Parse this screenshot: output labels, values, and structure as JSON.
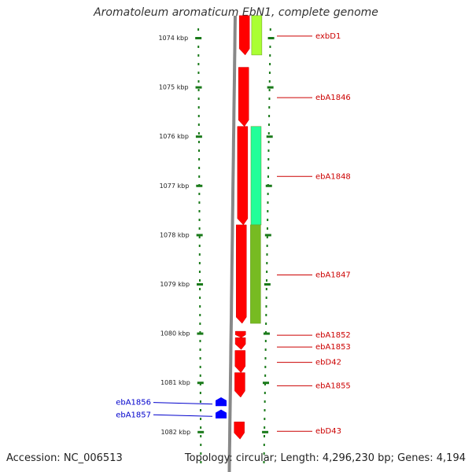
{
  "title": "Aromatoleum aromaticum EbN1, complete genome",
  "footer": {
    "accession": "Accession: NC_006513",
    "summary": "Topology: circular; Length: 4,296,230 bp; Genes: 4,194"
  },
  "colors": {
    "forward_gene": "#ff0000",
    "reverse_gene": "#0000ff",
    "forward_label": "#cc0000",
    "reverse_label": "#0000cc",
    "tick": "#1a7a1a",
    "backbone": "#888888"
  },
  "ruler": {
    "unit": "kbp",
    "ticks": [
      {
        "value": 1074,
        "label": "1074 kbp"
      },
      {
        "value": 1075,
        "label": "1075 kbp"
      },
      {
        "value": 1076,
        "label": "1076 kbp"
      },
      {
        "value": 1077,
        "label": "1077 kbp"
      },
      {
        "value": 1078,
        "label": "1078 kbp"
      },
      {
        "value": 1079,
        "label": "1079 kbp"
      },
      {
        "value": 1080,
        "label": "1080 kbp"
      },
      {
        "value": 1081,
        "label": "1081 kbp"
      },
      {
        "value": 1082,
        "label": "1082 kbp"
      }
    ]
  },
  "genes": [
    {
      "name": "exbD1",
      "strand": "forward",
      "start": 1073.55,
      "end": 1074.35
    },
    {
      "name": "ebA1846",
      "strand": "forward",
      "start": 1074.6,
      "end": 1075.8
    },
    {
      "name": "ebA1848",
      "strand": "forward",
      "start": 1075.8,
      "end": 1077.8
    },
    {
      "name": "ebA1847",
      "strand": "forward",
      "start": 1077.8,
      "end": 1079.8
    },
    {
      "name": "ebA1852",
      "strand": "forward",
      "start": 1079.96,
      "end": 1080.09
    },
    {
      "name": "ebA1853",
      "strand": "forward",
      "start": 1080.09,
      "end": 1080.33
    },
    {
      "name": "ebD42",
      "strand": "forward",
      "start": 1080.35,
      "end": 1080.8
    },
    {
      "name": "ebA1855",
      "strand": "forward",
      "start": 1080.8,
      "end": 1081.3
    },
    {
      "name": "ebA1856",
      "strand": "reverse",
      "start": 1081.3,
      "end": 1081.48
    },
    {
      "name": "ebA1857",
      "strand": "reverse",
      "start": 1081.55,
      "end": 1081.73
    },
    {
      "name": "ebD43",
      "strand": "forward",
      "start": 1081.8,
      "end": 1082.15
    }
  ],
  "features": [
    {
      "color": "#aaff33",
      "start": 1073.55,
      "end": 1074.35
    },
    {
      "color": "#22ff99",
      "start": 1075.8,
      "end": 1077.8
    },
    {
      "color": "#77bb22",
      "start": 1077.8,
      "end": 1079.8
    }
  ]
}
